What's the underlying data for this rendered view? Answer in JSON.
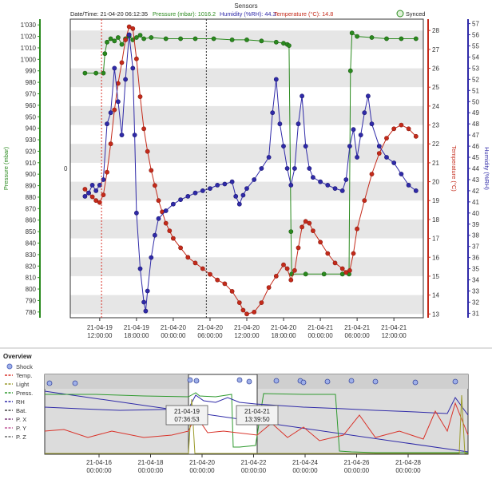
{
  "header": {
    "title": "Sensors",
    "datetime_label": "Date/Time: 21-04-20 06:12:35",
    "pressure_label": "Pressure (mbar): 1016.2",
    "humidity_label": "Humidity (%RH): 44.3",
    "temperature_label": "Temperature (°C): 14.8",
    "synced_label": "Synced"
  },
  "colors": {
    "pressure": "#2a8a1e",
    "humidity": "#2f2aa8",
    "temperature": "#c42a1a",
    "grid_band": "#e6e6e6",
    "overview_bg": "#dcdcdc"
  },
  "overview": {
    "title": "Overview",
    "legend": [
      {
        "label": "Shock",
        "color": "#5b6fc4"
      },
      {
        "label": "Temp.",
        "color": "#d9342b"
      },
      {
        "label": "Light",
        "color": "#9a9a2a"
      },
      {
        "label": "Press.",
        "color": "#2f9a2f"
      },
      {
        "label": "RH",
        "color": "#2f2aa8"
      },
      {
        "label": "Bat.",
        "color": "#444444"
      },
      {
        "label": "P. X",
        "color": "#7a3a7a"
      },
      {
        "label": "P. Y",
        "color": "#c45a9a"
      },
      {
        "label": "P. Z",
        "color": "#6a6a6a"
      }
    ],
    "x_ticks": [
      [
        "21-04-16",
        "00:00:00"
      ],
      [
        "21-04-18",
        "00:00:00"
      ],
      [
        "21-04-20",
        "00:00:00"
      ],
      [
        "21-04-22",
        "00:00:00"
      ],
      [
        "21-04-24",
        "00:00:00"
      ],
      [
        "21-04-26",
        "00:00:00"
      ],
      [
        "21-04-28",
        "00:00:00"
      ]
    ],
    "selection_start": [
      "21-04-19",
      "07:36:53"
    ],
    "selection_end": [
      "21-04-21",
      "13:39:50"
    ]
  },
  "chart_data": {
    "type": "line",
    "title": "Sensors",
    "zero_label": "0",
    "x_ticks": [
      [
        "21-04-19",
        "12:00:00"
      ],
      [
        "21-04-19",
        "18:00:00"
      ],
      [
        "21-04-20",
        "00:00:00"
      ],
      [
        "21-04-20",
        "06:00:00"
      ],
      [
        "21-04-20",
        "12:00:00"
      ],
      [
        "21-04-20",
        "18:00:00"
      ],
      [
        "21-04-21",
        "00:00:00"
      ],
      [
        "21-04-21",
        "06:00:00"
      ],
      [
        "21-04-21",
        "12:00:00"
      ]
    ],
    "axes": {
      "pressure": {
        "label": "Pressure (mbar)",
        "ticks": [
          "780",
          "790",
          "800",
          "810",
          "820",
          "830",
          "840",
          "850",
          "860",
          "870",
          "880",
          "890",
          "900",
          "910",
          "920",
          "930",
          "940",
          "950",
          "960",
          "970",
          "980",
          "990",
          "1'000",
          "1'010",
          "1'020",
          "1'030"
        ],
        "range": [
          775,
          1035
        ]
      },
      "temperature": {
        "label": "Temperature (°C)",
        "ticks": [
          "13",
          "14",
          "15",
          "16",
          "17",
          "18",
          "19",
          "20",
          "21",
          "22",
          "23",
          "24",
          "25",
          "26",
          "27",
          "28"
        ],
        "range": [
          12.8,
          28.6
        ]
      },
      "humidity": {
        "label": "Humidity (%RH)",
        "ticks": [
          "31",
          "32",
          "33",
          "34",
          "35",
          "36",
          "37",
          "38",
          "39",
          "40",
          "41",
          "42",
          "43",
          "44",
          "45",
          "46",
          "47",
          "48",
          "49",
          "50",
          "51",
          "52",
          "53",
          "54",
          "55",
          "56",
          "57"
        ],
        "range": [
          30.6,
          57.4
        ]
      }
    },
    "series": [
      {
        "name": "Pressure (mbar)",
        "axis": "pressure",
        "points": [
          [
            0,
            988
          ],
          [
            3,
            988
          ],
          [
            5,
            988
          ],
          [
            5.4,
            1005
          ],
          [
            6,
            1015
          ],
          [
            7,
            1018
          ],
          [
            8,
            1016
          ],
          [
            9,
            1019
          ],
          [
            10,
            1013
          ],
          [
            11,
            1018
          ],
          [
            12,
            1020
          ],
          [
            13,
            1017
          ],
          [
            14,
            1019
          ],
          [
            15,
            1021
          ],
          [
            16,
            1018
          ],
          [
            18,
            1019
          ],
          [
            22,
            1018
          ],
          [
            26,
            1018
          ],
          [
            30,
            1018
          ],
          [
            35,
            1018
          ],
          [
            40,
            1017
          ],
          [
            44,
            1017
          ],
          [
            48,
            1016
          ],
          [
            52,
            1015
          ],
          [
            54,
            1014
          ],
          [
            55,
            1013
          ],
          [
            55.5,
            1012
          ],
          [
            56,
            850
          ],
          [
            56.2,
            813
          ],
          [
            60,
            813
          ],
          [
            65,
            813
          ],
          [
            70,
            813
          ],
          [
            71.8,
            813
          ],
          [
            72.2,
            990
          ],
          [
            72.6,
            1023
          ],
          [
            74,
            1020
          ],
          [
            78,
            1019
          ],
          [
            82,
            1018
          ],
          [
            86,
            1018
          ],
          [
            90,
            1018
          ]
        ]
      },
      {
        "name": "Temperature (°C)",
        "axis": "temperature",
        "points": [
          [
            0,
            19.6
          ],
          [
            1,
            19.4
          ],
          [
            2,
            19.2
          ],
          [
            3,
            19.0
          ],
          [
            4,
            18.9
          ],
          [
            5,
            19.3
          ],
          [
            6,
            20.5
          ],
          [
            7,
            22
          ],
          [
            8,
            23.8
          ],
          [
            9,
            25.2
          ],
          [
            10,
            26.3
          ],
          [
            11,
            27.5
          ],
          [
            12,
            28.2
          ],
          [
            13,
            28.1
          ],
          [
            14,
            26.5
          ],
          [
            15,
            24.5
          ],
          [
            16,
            22.8
          ],
          [
            17,
            21.6
          ],
          [
            18,
            20.6
          ],
          [
            19,
            19.8
          ],
          [
            20,
            19.0
          ],
          [
            21,
            18.4
          ],
          [
            22,
            17.8
          ],
          [
            23,
            17.4
          ],
          [
            24,
            17.0
          ],
          [
            26,
            16.5
          ],
          [
            28,
            16.0
          ],
          [
            30,
            15.7
          ],
          [
            32,
            15.4
          ],
          [
            34,
            15.1
          ],
          [
            36,
            14.8
          ],
          [
            38,
            14.6
          ],
          [
            40,
            14.2
          ],
          [
            42,
            13.6
          ],
          [
            43,
            13.2
          ],
          [
            44,
            13.0
          ],
          [
            46,
            13.1
          ],
          [
            48,
            13.6
          ],
          [
            50,
            14.4
          ],
          [
            52,
            15.0
          ],
          [
            54,
            15.6
          ],
          [
            55,
            15.4
          ],
          [
            56,
            14.8
          ],
          [
            57,
            15.3
          ],
          [
            58,
            16.5
          ],
          [
            59,
            17.6
          ],
          [
            60,
            17.9
          ],
          [
            61,
            17.8
          ],
          [
            62,
            17.4
          ],
          [
            64,
            16.8
          ],
          [
            66,
            16.2
          ],
          [
            68,
            15.7
          ],
          [
            70,
            15.4
          ],
          [
            71,
            15.2
          ],
          [
            72,
            15.3
          ],
          [
            73,
            16.2
          ],
          [
            74,
            17.5
          ],
          [
            76,
            19.0
          ],
          [
            78,
            20.4
          ],
          [
            80,
            21.5
          ],
          [
            82,
            22.3
          ],
          [
            84,
            22.8
          ],
          [
            86,
            23.0
          ],
          [
            88,
            22.8
          ],
          [
            90,
            22.4
          ]
        ]
      },
      {
        "name": "Humidity (%RH)",
        "axis": "humidity",
        "points": [
          [
            0,
            41.5
          ],
          [
            1,
            41.8
          ],
          [
            2,
            42.5
          ],
          [
            3,
            42.0
          ],
          [
            4,
            42.5
          ],
          [
            5,
            43.0
          ],
          [
            6,
            48
          ],
          [
            7,
            49
          ],
          [
            8,
            53
          ],
          [
            9,
            50
          ],
          [
            10,
            47
          ],
          [
            11,
            52
          ],
          [
            12,
            56
          ],
          [
            13,
            53
          ],
          [
            13.5,
            47
          ],
          [
            14,
            40
          ],
          [
            15,
            35
          ],
          [
            16,
            32
          ],
          [
            16.5,
            31.2
          ],
          [
            17,
            33
          ],
          [
            18,
            36
          ],
          [
            19,
            38
          ],
          [
            20,
            39.5
          ],
          [
            22,
            40.2
          ],
          [
            24,
            40.8
          ],
          [
            26,
            41.2
          ],
          [
            28,
            41.5
          ],
          [
            30,
            41.8
          ],
          [
            32,
            42.0
          ],
          [
            34,
            42.2
          ],
          [
            36,
            42.5
          ],
          [
            38,
            42.6
          ],
          [
            40,
            42.8
          ],
          [
            41,
            41.5
          ],
          [
            42,
            40.8
          ],
          [
            43,
            41.6
          ],
          [
            44,
            42.2
          ],
          [
            46,
            43.0
          ],
          [
            48,
            44.0
          ],
          [
            50,
            45.0
          ],
          [
            51,
            49
          ],
          [
            52,
            52
          ],
          [
            53,
            48
          ],
          [
            54,
            46
          ],
          [
            55,
            44
          ],
          [
            56,
            42.5
          ],
          [
            57,
            44
          ],
          [
            58,
            48
          ],
          [
            59,
            50.5
          ],
          [
            60,
            46
          ],
          [
            61,
            44
          ],
          [
            62,
            43.2
          ],
          [
            64,
            42.8
          ],
          [
            66,
            42.5
          ],
          [
            68,
            42.2
          ],
          [
            70,
            42.0
          ],
          [
            71,
            43
          ],
          [
            72,
            46
          ],
          [
            73,
            47.5
          ],
          [
            74,
            45
          ],
          [
            75,
            47
          ],
          [
            76,
            49
          ],
          [
            77,
            50.5
          ],
          [
            78,
            48
          ],
          [
            80,
            46
          ],
          [
            82,
            45
          ],
          [
            84,
            44.5
          ],
          [
            86,
            43.5
          ],
          [
            88,
            42.5
          ],
          [
            90,
            42.0
          ]
        ]
      }
    ],
    "x_range": [
      -4,
      92
    ],
    "grid": true,
    "cursor_x": 33
  }
}
